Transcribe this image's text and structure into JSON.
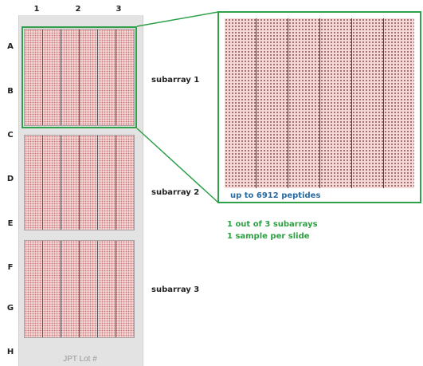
{
  "columns": [
    "1",
    "2",
    "3"
  ],
  "rows": [
    "A",
    "B",
    "C",
    "D",
    "E",
    "F",
    "G",
    "H"
  ],
  "subarrays": [
    {
      "label": "subarray 1"
    },
    {
      "label": "subarray 2"
    },
    {
      "label": "subarray 3"
    }
  ],
  "zoom_caption": "up to 6912 peptides",
  "notes": [
    "1 out of 3 subarrays",
    "1 sample per slide"
  ],
  "slide_footer": "JPT Lot #",
  "colors": {
    "highlight": "#30a04a",
    "caption_blue": "#2a6aa2",
    "note_green": "#2ea043",
    "spot_fill": "#f4d6d6",
    "slide_gray": "#e3e3e3"
  }
}
